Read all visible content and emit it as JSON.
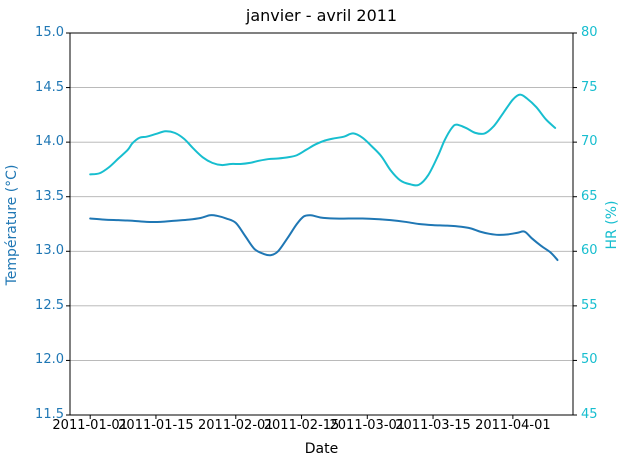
{
  "chart_data": {
    "type": "line",
    "title": "janvier - avril 2011",
    "xlabel": "Date",
    "ylabel_left": "Température (°C)",
    "ylabel_right": "HR (%)",
    "grid": true,
    "legend": "none",
    "x_unit": "days since 2011-01-01",
    "xlim_days": [
      -4.3,
      102.8
    ],
    "ylim_left": [
      11.5,
      15.0
    ],
    "ylim_right": [
      45,
      80
    ],
    "x_ticks": [
      {
        "d": 0,
        "label": "2011-01-01"
      },
      {
        "d": 14,
        "label": "2011-01-15"
      },
      {
        "d": 31,
        "label": "2011-02-01"
      },
      {
        "d": 45,
        "label": "2011-02-15"
      },
      {
        "d": 59,
        "label": "2011-03-01"
      },
      {
        "d": 73,
        "label": "2011-03-15"
      },
      {
        "d": 90,
        "label": "2011-04-01"
      }
    ],
    "y_ticks_left": [
      "15.0",
      "14.5",
      "14.0",
      "13.5",
      "13.0",
      "12.5",
      "12.0",
      "11.5"
    ],
    "y_ticks_right": [
      "80",
      "75",
      "70",
      "65",
      "60",
      "55",
      "50",
      "45"
    ],
    "colors": {
      "temperature": "#1f77b4",
      "humidity": "#17becf",
      "grid": "#b0b0b0",
      "spine": "#000000",
      "title": "#000000"
    },
    "series": [
      {
        "name": "Température",
        "axis": "left",
        "unit": "°C",
        "color_key": "temperature",
        "points": [
          [
            0,
            13.3
          ],
          [
            3,
            13.29
          ],
          [
            6,
            13.285
          ],
          [
            9,
            13.28
          ],
          [
            12,
            13.27
          ],
          [
            15,
            13.27
          ],
          [
            18,
            13.28
          ],
          [
            21,
            13.29
          ],
          [
            23.5,
            13.305
          ],
          [
            25.5,
            13.33
          ],
          [
            27,
            13.325
          ],
          [
            29,
            13.3
          ],
          [
            31,
            13.26
          ],
          [
            33,
            13.14
          ],
          [
            35,
            13.02
          ],
          [
            37,
            12.975
          ],
          [
            38.5,
            12.965
          ],
          [
            40,
            13.0
          ],
          [
            42,
            13.12
          ],
          [
            44,
            13.25
          ],
          [
            45.5,
            13.32
          ],
          [
            47,
            13.33
          ],
          [
            49,
            13.31
          ],
          [
            52,
            13.3
          ],
          [
            55,
            13.3
          ],
          [
            58,
            13.3
          ],
          [
            61,
            13.295
          ],
          [
            64,
            13.285
          ],
          [
            67,
            13.27
          ],
          [
            70,
            13.25
          ],
          [
            73,
            13.24
          ],
          [
            76,
            13.235
          ],
          [
            79,
            13.225
          ],
          [
            81,
            13.21
          ],
          [
            83,
            13.18
          ],
          [
            85,
            13.16
          ],
          [
            87,
            13.15
          ],
          [
            89,
            13.155
          ],
          [
            91,
            13.17
          ],
          [
            92.5,
            13.18
          ],
          [
            94,
            13.12
          ],
          [
            96,
            13.05
          ],
          [
            98,
            12.99
          ],
          [
            99.5,
            12.92
          ]
        ]
      },
      {
        "name": "HR",
        "axis": "right",
        "unit": "%",
        "color_key": "humidity",
        "points": [
          [
            0,
            67.05
          ],
          [
            2,
            67.15
          ],
          [
            4,
            67.7
          ],
          [
            6,
            68.5
          ],
          [
            8,
            69.3
          ],
          [
            9,
            69.9
          ],
          [
            10.5,
            70.4
          ],
          [
            12,
            70.5
          ],
          [
            14,
            70.75
          ],
          [
            16,
            71.0
          ],
          [
            18,
            70.85
          ],
          [
            20,
            70.3
          ],
          [
            22,
            69.4
          ],
          [
            24,
            68.6
          ],
          [
            26,
            68.1
          ],
          [
            28,
            67.9
          ],
          [
            30,
            68.0
          ],
          [
            32,
            68.0
          ],
          [
            34,
            68.1
          ],
          [
            36,
            68.3
          ],
          [
            38,
            68.45
          ],
          [
            40,
            68.5
          ],
          [
            42,
            68.6
          ],
          [
            44,
            68.8
          ],
          [
            46,
            69.3
          ],
          [
            48,
            69.8
          ],
          [
            50,
            70.15
          ],
          [
            52,
            70.35
          ],
          [
            54,
            70.5
          ],
          [
            56,
            70.8
          ],
          [
            58,
            70.4
          ],
          [
            60,
            69.6
          ],
          [
            62,
            68.7
          ],
          [
            64,
            67.4
          ],
          [
            66,
            66.5
          ],
          [
            68,
            66.15
          ],
          [
            70,
            66.1
          ],
          [
            72,
            67.0
          ],
          [
            74,
            68.7
          ],
          [
            75.5,
            70.2
          ],
          [
            77,
            71.3
          ],
          [
            78,
            71.6
          ],
          [
            80,
            71.3
          ],
          [
            82,
            70.85
          ],
          [
            84,
            70.8
          ],
          [
            86,
            71.5
          ],
          [
            88,
            72.7
          ],
          [
            90,
            73.9
          ],
          [
            91.5,
            74.35
          ],
          [
            93,
            74.0
          ],
          [
            95,
            73.2
          ],
          [
            97,
            72.1
          ],
          [
            99,
            71.3
          ]
        ]
      }
    ]
  }
}
